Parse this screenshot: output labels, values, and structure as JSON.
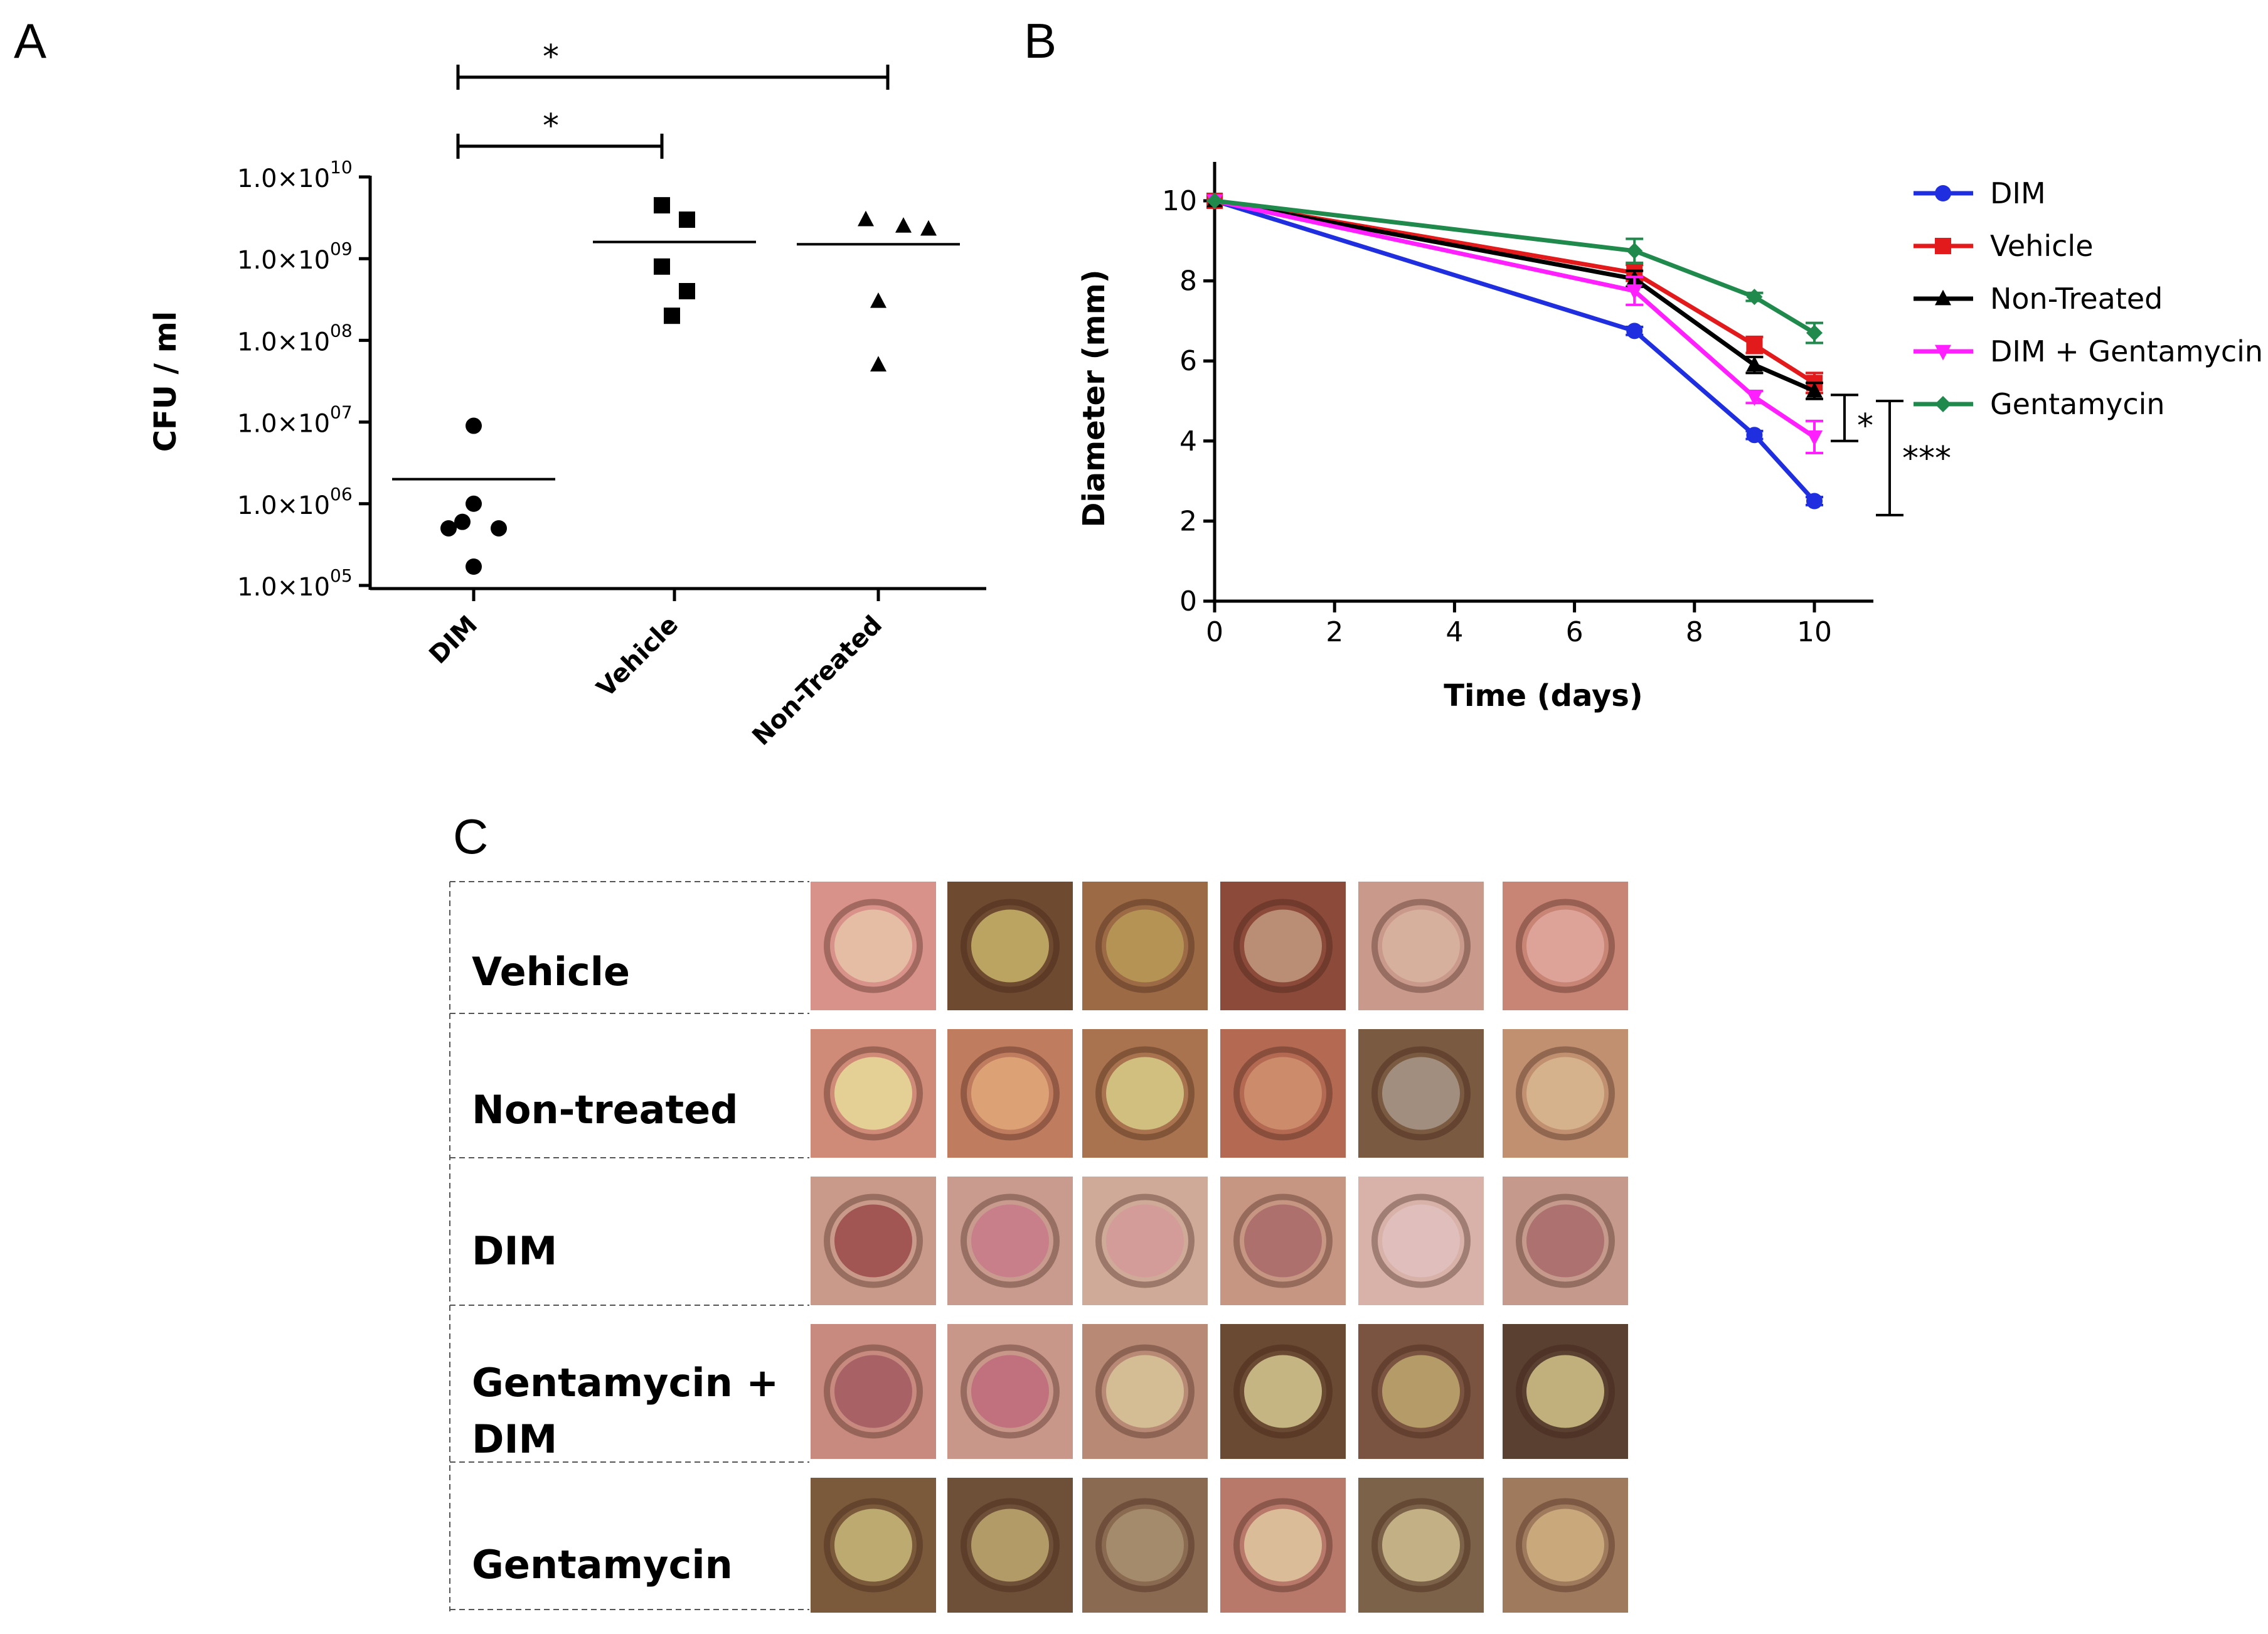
{
  "panels": {
    "a": "A",
    "b": "B",
    "c": "C"
  },
  "chart_data": [
    {
      "type": "scatter",
      "panel": "A",
      "ylabel": "CFU / ml",
      "yscale": "log",
      "ylim_exponents": [
        5,
        10
      ],
      "ytick_base": "1.0×10",
      "ytick_exponents": [
        "05",
        "06",
        "07",
        "08",
        "09",
        "10"
      ],
      "categories": [
        "DIM",
        "Vehicle",
        "Non-Treated"
      ],
      "series": [
        {
          "name": "DIM",
          "marker": "circle",
          "points": [
            9000000,
            1000000,
            500000,
            500000,
            600000,
            170000
          ],
          "mean": 2000000
        },
        {
          "name": "Vehicle",
          "marker": "square",
          "points": [
            4500000000,
            3000000000,
            800000000,
            400000000,
            200000000
          ],
          "mean": 1600000000
        },
        {
          "name": "Non-Treated",
          "marker": "triangle",
          "points": [
            3000000000,
            2300000000,
            2500000000,
            300000000,
            50000000
          ],
          "mean": 1500000000
        }
      ],
      "significance": [
        {
          "from": "DIM",
          "to": "Non-Treated",
          "label": "*"
        },
        {
          "from": "DIM",
          "to": "Vehicle",
          "label": "*"
        }
      ]
    },
    {
      "type": "line",
      "panel": "B",
      "xlabel": "Time (days)",
      "ylabel": "Diameter (mm)",
      "xlim": [
        0,
        11
      ],
      "ylim": [
        0,
        11
      ],
      "xticks": [
        "0",
        "2",
        "4",
        "6",
        "8",
        "10"
      ],
      "yticks": [
        "0",
        "2",
        "4",
        "6",
        "8",
        "10"
      ],
      "x": [
        0,
        7,
        9,
        10
      ],
      "series": [
        {
          "name": "DIM",
          "color": "#1f2fe0",
          "marker": "circle",
          "values": [
            10,
            6.75,
            4.15,
            2.5
          ],
          "error": [
            0.05,
            0.1,
            0.1,
            0.1
          ]
        },
        {
          "name": "Vehicle",
          "color": "#e31a1c",
          "marker": "square",
          "values": [
            10,
            8.2,
            6.4,
            5.45
          ],
          "error": [
            0.05,
            0.2,
            0.2,
            0.25
          ]
        },
        {
          "name": "Non-Treated",
          "color": "#000000",
          "marker": "triangle",
          "values": [
            10,
            8.05,
            5.9,
            5.25
          ],
          "error": [
            0.05,
            0.2,
            0.2,
            0.2
          ]
        },
        {
          "name": "DIM + Gentamycin",
          "color": "#ff1fff",
          "marker": "triangle-down",
          "values": [
            10,
            7.75,
            5.1,
            4.1
          ],
          "error": [
            0.05,
            0.35,
            0.15,
            0.4
          ]
        },
        {
          "name": "Gentamycin",
          "color": "#1f8a4c",
          "marker": "diamond",
          "values": [
            10,
            8.75,
            7.6,
            6.7
          ],
          "error": [
            0.05,
            0.3,
            0.1,
            0.25
          ]
        }
      ],
      "significance": [
        {
          "span": [
            4.0,
            5.15
          ],
          "label": "*"
        },
        {
          "span": [
            2.15,
            5.0
          ],
          "label": "***"
        }
      ]
    }
  ],
  "panel_c": {
    "rows": [
      {
        "label_lines": [
          "Vehicle"
        ]
      },
      {
        "label_lines": [
          "Non-treated"
        ]
      },
      {
        "label_lines": [
          "DIM"
        ]
      },
      {
        "label_lines": [
          "Gentamycin +",
          "DIM"
        ]
      },
      {
        "label_lines": [
          "Gentamycin"
        ]
      }
    ],
    "tone_palettes": [
      [
        "#d9928a",
        "#6e4a30",
        "#9c6a45",
        "#8c4a3a",
        "#c99a8c",
        "#c88474"
      ],
      [
        "#cf8a78",
        "#c07c5e",
        "#a8734e",
        "#b46a52",
        "#7a5a40",
        "#c09070"
      ],
      [
        "#c99a8a",
        "#c89b8e",
        "#d0aa98",
        "#c69682",
        "#d8b2a8",
        "#c59a8c"
      ],
      [
        "#c88a7e",
        "#c9968a",
        "#b88a76",
        "#6a4a32",
        "#7a5440",
        "#5a4030"
      ],
      [
        "#7a5a3a",
        "#6e5038",
        "#8a6a50",
        "#b8786a",
        "#7c6248",
        "#a07a5c"
      ]
    ],
    "centers": [
      [
        "#e6c4a8",
        "#c9b46a",
        "#b89a58",
        "#c29a80",
        "#d8b4a0",
        "#e0a8a0"
      ],
      [
        "#e8dc9a",
        "#e0a878",
        "#d8cc8a",
        "#d09070",
        "#a8988a",
        "#d8b890"
      ],
      [
        "#9a4a4a",
        "#c87a8a",
        "#d49a98",
        "#a86a6a",
        "#e0c0c0",
        "#a86a6a"
      ],
      [
        "#a25a62",
        "#c06a7a",
        "#d8c49a",
        "#d4c890",
        "#c0a870",
        "#d4c48a"
      ],
      [
        "#c8b87a",
        "#c0a870",
        "#a89070",
        "#e0c8a0",
        "#d0c090",
        "#d0b080"
      ]
    ]
  }
}
